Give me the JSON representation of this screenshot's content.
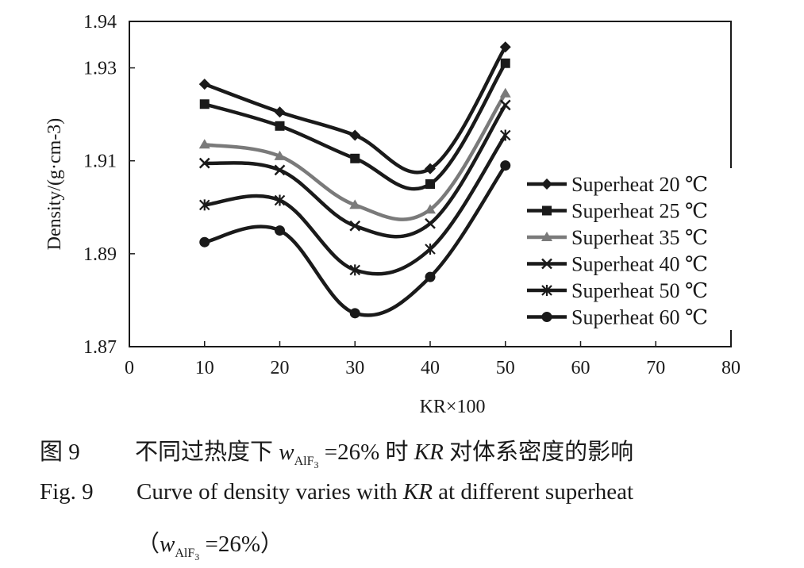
{
  "chart_data": {
    "type": "line",
    "xlabel": "KR×100",
    "ylabel": "Density/(g·cm-3)",
    "xlim": [
      0,
      80
    ],
    "ylim": [
      1.87,
      1.94
    ],
    "x_ticks": [
      "0",
      "10",
      "20",
      "30",
      "40",
      "50",
      "60",
      "70",
      "80"
    ],
    "y_ticks": [
      "1.87",
      "1.89",
      "1.91",
      "1.93",
      "1.94"
    ],
    "grid": false,
    "legend_position": "right",
    "series": [
      {
        "name": "Superheat 20 ℃",
        "marker": "diamond",
        "color": "#1a1a1a",
        "x": [
          10,
          20,
          30,
          40,
          50
        ],
        "y": [
          1.9265,
          1.9205,
          1.9155,
          1.9083,
          1.9345
        ]
      },
      {
        "name": "Superheat 25 ℃",
        "marker": "square",
        "color": "#1a1a1a",
        "x": [
          10,
          20,
          30,
          40,
          50
        ],
        "y": [
          1.9222,
          1.9175,
          1.9105,
          1.905,
          1.931
        ]
      },
      {
        "name": "Superheat 35 ℃",
        "marker": "triangle",
        "color": "#7a7a7a",
        "x": [
          10,
          20,
          30,
          40,
          50
        ],
        "y": [
          1.9135,
          1.911,
          1.9005,
          1.8995,
          1.9245
        ]
      },
      {
        "name": "Superheat 40 ℃",
        "marker": "x",
        "color": "#1a1a1a",
        "x": [
          10,
          20,
          30,
          40,
          50
        ],
        "y": [
          1.9095,
          1.908,
          1.896,
          1.8965,
          1.922
        ]
      },
      {
        "name": "Superheat 50 ℃",
        "marker": "asterisk",
        "color": "#1a1a1a",
        "x": [
          10,
          20,
          30,
          40,
          50
        ],
        "y": [
          1.9005,
          1.9015,
          1.8865,
          1.891,
          1.9155
        ]
      },
      {
        "name": "Superheat 60 ℃",
        "marker": "circle",
        "color": "#1a1a1a",
        "x": [
          10,
          20,
          30,
          40,
          50
        ],
        "y": [
          1.8925,
          1.895,
          1.8772,
          1.885,
          1.909
        ]
      }
    ]
  },
  "caption": {
    "cn_num": "图 9",
    "cn_a": "不同过热度下",
    "cn_w": "w",
    "cn_sub": "AlF",
    "cn_sub3": "3",
    "cn_b": " =26% 时 ",
    "cn_kr": "KR",
    "cn_c": " 对体系密度的影响",
    "en_num": "Fig. 9",
    "en_a": "Curve of density varies with ",
    "en_kr": "KR",
    "en_b": " at different superheat",
    "en2_open": "（",
    "en2_w": "w",
    "en2_sub": "AlF",
    "en2_sub3": "3",
    "en2_b": " =26%",
    "en2_close": "）"
  }
}
